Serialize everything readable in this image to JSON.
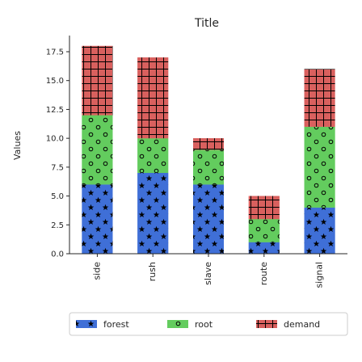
{
  "chart_data": {
    "type": "bar",
    "stacked": true,
    "title": "Title",
    "xlabel": "",
    "ylabel": "Values",
    "categories": [
      "side",
      "rush",
      "slave",
      "route",
      "signal"
    ],
    "series": [
      {
        "name": "forest",
        "values": [
          6,
          7,
          6,
          1,
          4
        ],
        "color": "#3f6fd7",
        "pattern": "stars"
      },
      {
        "name": "root",
        "values": [
          6,
          3,
          3,
          2,
          7
        ],
        "color": "#63cc5e",
        "pattern": "circles"
      },
      {
        "name": "demand",
        "values": [
          6,
          7,
          1,
          2,
          5
        ],
        "color": "#d9605e",
        "pattern": "grid"
      }
    ],
    "ylim": [
      0,
      18.9
    ],
    "yticks": [
      "0.0",
      "2.5",
      "5.0",
      "7.5",
      "10.0",
      "12.5",
      "15.0",
      "17.5"
    ],
    "grid": false,
    "legend_position": "bottom"
  }
}
